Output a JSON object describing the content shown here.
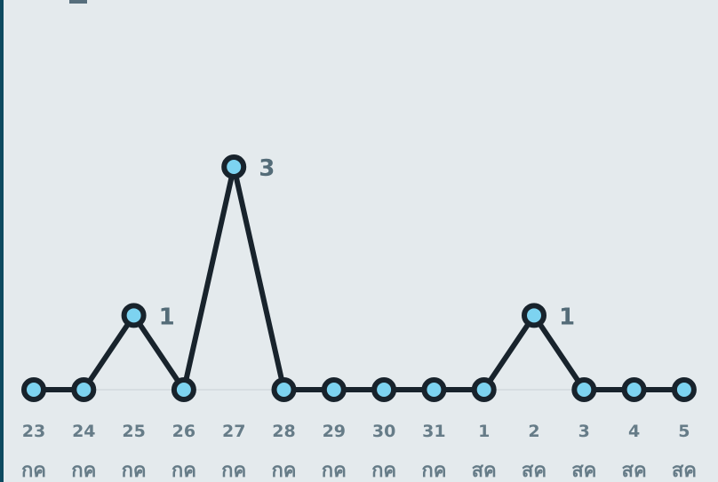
{
  "chart_data": {
    "type": "line",
    "categories": [
      {
        "day": "23",
        "month": "กค"
      },
      {
        "day": "24",
        "month": "กค"
      },
      {
        "day": "25",
        "month": "กค"
      },
      {
        "day": "26",
        "month": "กค"
      },
      {
        "day": "27",
        "month": "กค"
      },
      {
        "day": "28",
        "month": "กค"
      },
      {
        "day": "29",
        "month": "กค"
      },
      {
        "day": "30",
        "month": "กค"
      },
      {
        "day": "31",
        "month": "กค"
      },
      {
        "day": "1",
        "month": "สค"
      },
      {
        "day": "2",
        "month": "สค"
      },
      {
        "day": "3",
        "month": "สค"
      },
      {
        "day": "4",
        "month": "สค"
      },
      {
        "day": "5",
        "month": "สค"
      }
    ],
    "values": [
      0,
      0,
      1,
      0,
      3,
      0,
      0,
      0,
      0,
      0,
      1,
      0,
      0,
      0
    ],
    "title": "",
    "xlabel": "",
    "ylabel": "",
    "ylim": [
      0,
      3
    ],
    "grid": false,
    "data_labels_shown_for_nonzero": true,
    "colors": {
      "line": "#18232c",
      "point_fill": "#7dd3f0",
      "label": "#546c78",
      "tick": "#667c88",
      "background": "#e4eaed",
      "frame_accent": "#0d4a60"
    }
  }
}
